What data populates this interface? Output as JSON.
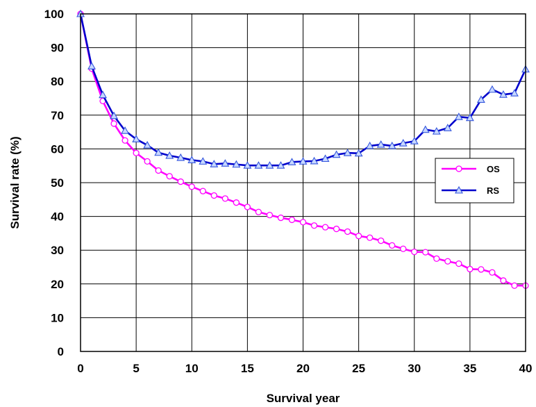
{
  "chart_data": {
    "type": "line",
    "title": "",
    "xlabel": "Survival year",
    "ylabel": "Survival rate (%)",
    "xlim": [
      0,
      40
    ],
    "ylim": [
      0,
      100
    ],
    "xticks": [
      0,
      5,
      10,
      15,
      20,
      25,
      30,
      35,
      40
    ],
    "yticks": [
      0,
      10,
      20,
      30,
      40,
      50,
      60,
      70,
      80,
      90,
      100
    ],
    "grid": true,
    "legend_position": "right",
    "x": [
      0,
      1,
      2,
      3,
      4,
      5,
      6,
      7,
      8,
      9,
      10,
      11,
      12,
      13,
      14,
      15,
      16,
      17,
      18,
      19,
      20,
      21,
      22,
      23,
      24,
      25,
      26,
      27,
      28,
      29,
      30,
      31,
      32,
      33,
      34,
      35,
      36,
      37,
      38,
      39,
      40
    ],
    "series": [
      {
        "name": "OS",
        "color": "#ff00ff",
        "marker": "circle",
        "values": [
          100,
          83.8,
          74.2,
          67.5,
          62.5,
          58.8,
          56.3,
          53.6,
          51.9,
          50.3,
          48.8,
          47.5,
          46.2,
          45.3,
          44.1,
          42.8,
          41.3,
          40.4,
          39.6,
          39.0,
          38.3,
          37.3,
          36.8,
          36.3,
          35.5,
          34.2,
          33.7,
          32.8,
          31.4,
          30.4,
          29.5,
          29.4,
          27.5,
          26.7,
          26.0,
          24.4,
          24.3,
          23.4,
          21.0,
          19.5,
          19.5
        ]
      },
      {
        "name": "RS",
        "color": "#0000cc",
        "marker": "triangle",
        "values": [
          100,
          84.5,
          76.0,
          69.8,
          65.4,
          62.9,
          61.1,
          58.9,
          58.0,
          57.4,
          56.7,
          56.3,
          55.5,
          55.7,
          55.4,
          55.1,
          55.1,
          55.1,
          55.1,
          56.1,
          56.3,
          56.4,
          57.1,
          58.3,
          58.8,
          58.7,
          60.9,
          61.3,
          60.9,
          61.7,
          62.3,
          65.7,
          65.2,
          66.2,
          69.5,
          69.2,
          74.6,
          77.6,
          76.1,
          76.5,
          83.6
        ]
      }
    ]
  }
}
